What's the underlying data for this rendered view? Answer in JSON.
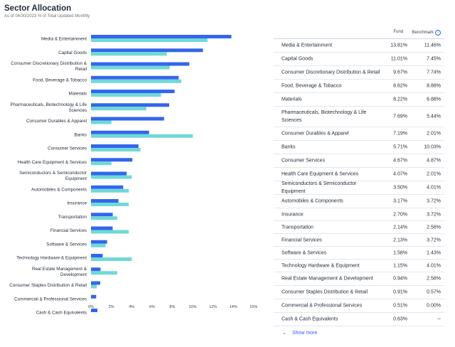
{
  "header": {
    "title": "Sector Allocation",
    "subtitle": "As of 04/30/2023 % of Total Updated Monthly"
  },
  "colors": {
    "fund": "#3366ee",
    "benchmark": "#6fd9d6"
  },
  "table": {
    "fund_header": "Fund",
    "benchmark_header": "Benchmark",
    "info_icon": "info-icon",
    "rows": [
      {
        "name": "Media & Entertainment",
        "fund": "13.81%",
        "benchmark": "11.46%"
      },
      {
        "name": "Capital Goods",
        "fund": "11.01%",
        "benchmark": "7.45%"
      },
      {
        "name": "Consumer Discretionary Distribution & Retail",
        "fund": "9.67%",
        "benchmark": "7.74%"
      },
      {
        "name": "Food, Beverage & Tobacco",
        "fund": "8.62%",
        "benchmark": "8.88%"
      },
      {
        "name": "Materials",
        "fund": "8.22%",
        "benchmark": "6.88%"
      },
      {
        "name": "Pharmaceuticals, Biotechnology & Life Sciences",
        "fund": "7.69%",
        "benchmark": "5.44%"
      },
      {
        "name": "Consumer Durables & Apparel",
        "fund": "7.19%",
        "benchmark": "2.01%"
      },
      {
        "name": "Banks",
        "fund": "5.71%",
        "benchmark": "10.03%"
      },
      {
        "name": "Consumer Services",
        "fund": "4.67%",
        "benchmark": "4.87%"
      },
      {
        "name": "Health Care Equipment & Services",
        "fund": "4.07%",
        "benchmark": "2.01%"
      },
      {
        "name": "Semiconductors & Semiconductor Equipment",
        "fund": "3.50%",
        "benchmark": "4.01%"
      },
      {
        "name": "Automobiles & Components",
        "fund": "3.17%",
        "benchmark": "3.72%"
      },
      {
        "name": "Insurance",
        "fund": "2.70%",
        "benchmark": "3.72%"
      },
      {
        "name": "Transportation",
        "fund": "2.14%",
        "benchmark": "2.58%"
      },
      {
        "name": "Financial Services",
        "fund": "2.13%",
        "benchmark": "3.72%"
      },
      {
        "name": "Software & Services",
        "fund": "1.58%",
        "benchmark": "1.43%"
      },
      {
        "name": "Technology Hardware & Equipment",
        "fund": "1.15%",
        "benchmark": "4.01%"
      },
      {
        "name": "Real Estate Management & Development",
        "fund": "0.94%",
        "benchmark": "2.58%"
      },
      {
        "name": "Consumer Staples Distribution & Retail",
        "fund": "0.91%",
        "benchmark": "0.57%"
      },
      {
        "name": "Commercial & Professional Services",
        "fund": "0.51%",
        "benchmark": "0.00%"
      },
      {
        "name": "Cash & Cash Equivalents",
        "fund": "0.63%",
        "benchmark": "--"
      }
    ],
    "show_more": "Show more"
  },
  "chart_data": {
    "type": "bar",
    "orientation": "horizontal",
    "categories": [
      "Media & Entertainment",
      "Capital Goods",
      "Consumer Discretionary Distribution & Retail",
      "Food, Beverage & Tobacco",
      "Materials",
      "Pharmaceuticals, Biotechnology & Life Sciences",
      "Consumer Durables & Apparel",
      "Banks",
      "Consumer Services",
      "Health Care Equipment & Services",
      "Semiconductors & Semiconductor Equipment",
      "Automobiles & Components",
      "Insurance",
      "Transportation",
      "Financial Services",
      "Software & Services",
      "Technology Hardware & Equipment",
      "Real Estate Management & Development",
      "Consumer Staples Distribution & Retail",
      "Commercial & Professional Services",
      "Cash & Cash Equivalents"
    ],
    "category_lines": [
      [
        "Media & Entertainment"
      ],
      [
        "Capital Goods"
      ],
      [
        "Consumer Discretionary Distribution &",
        "Retail"
      ],
      [
        "Food, Beverage & Tobacco"
      ],
      [
        "Materials"
      ],
      [
        "Pharmaceuticals, Biotechnology & Life",
        "Sciences"
      ],
      [
        "Consumer Durables & Apparel"
      ],
      [
        "Banks"
      ],
      [
        "Consumer Services"
      ],
      [
        "Health Care Equipment & Services"
      ],
      [
        "Semiconductors & Semiconductor",
        "Equipment"
      ],
      [
        "Automobiles & Components"
      ],
      [
        "Insurance"
      ],
      [
        "Transportation"
      ],
      [
        "Financial Services"
      ],
      [
        "Software & Services"
      ],
      [
        "Technology Hardware & Equipment"
      ],
      [
        "Real Estate Management &",
        "Development"
      ],
      [
        "Consumer Staples Distribution & Retail"
      ],
      [
        "Commercial & Professional Services"
      ],
      [
        "Cash & Cash Equivalents"
      ]
    ],
    "series": [
      {
        "name": "Fund",
        "values": [
          13.81,
          11.01,
          9.67,
          8.62,
          8.22,
          7.69,
          7.19,
          5.71,
          4.67,
          4.07,
          3.5,
          3.17,
          2.7,
          2.14,
          2.13,
          1.58,
          1.15,
          0.94,
          0.91,
          0.51,
          0.63
        ]
      },
      {
        "name": "Benchmark",
        "values": [
          11.46,
          7.45,
          7.74,
          8.88,
          6.88,
          5.44,
          2.01,
          10.03,
          4.87,
          2.01,
          4.01,
          3.72,
          3.72,
          2.58,
          3.72,
          1.43,
          4.01,
          2.58,
          0.57,
          0.0,
          0
        ]
      }
    ],
    "x_ticks": [
      "0%",
      "2%",
      "4%",
      "6%",
      "8%",
      "10%",
      "12%",
      "14%",
      "16%"
    ],
    "xlim": [
      0,
      16
    ],
    "grid": false,
    "legend": "none"
  }
}
